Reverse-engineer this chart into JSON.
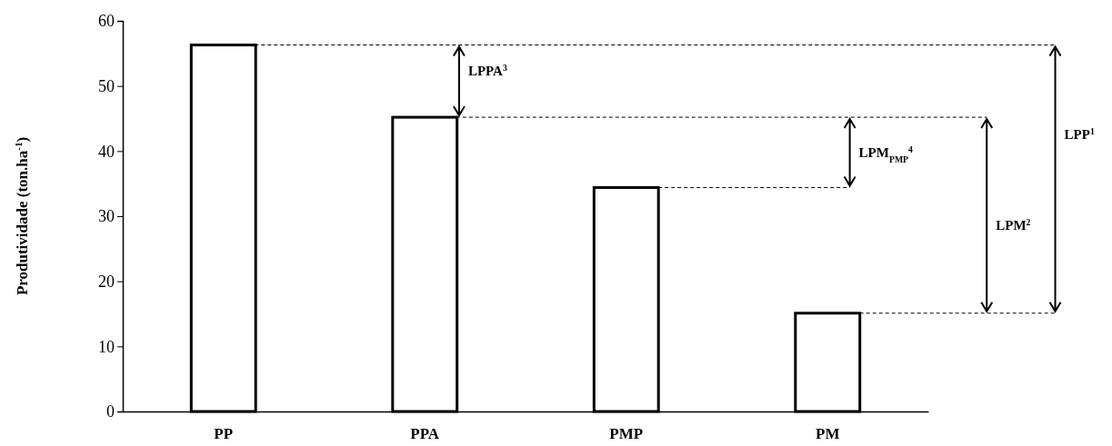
{
  "chart_data": {
    "type": "bar",
    "ylabel": "Produtividade  (ton.ha$^{-1}$)",
    "categories": [
      "PP",
      "PPA",
      "PMP",
      "PM"
    ],
    "values": [
      56.3,
      45.2,
      34.4,
      15.1
    ],
    "color": "#ffffff",
    "ref_lines": [
      {
        "axis": "y",
        "value": 56.3,
        "color": "#000000",
        "line_style": "dashed"
      },
      {
        "axis": "y",
        "value": 45.2,
        "color": "#000000",
        "line_style": "dashed"
      },
      {
        "axis": "y",
        "value": 34.4,
        "color": "#000000",
        "line_style": "dashed"
      },
      {
        "axis": "y",
        "value": 15.1,
        "color": "#000000",
        "line_style": "dashed"
      }
    ],
    "ylim": [
      0,
      60
    ],
    "yticks": [
      0,
      10,
      20,
      30,
      40,
      50,
      60
    ],
    "grid": false,
    "annotations": [
      "LPPA$^{3}$",
      "LPM$_{PMP}$$^{4}$",
      "LPM$^{2}$",
      "LPP$^{1}$"
    ]
  }
}
